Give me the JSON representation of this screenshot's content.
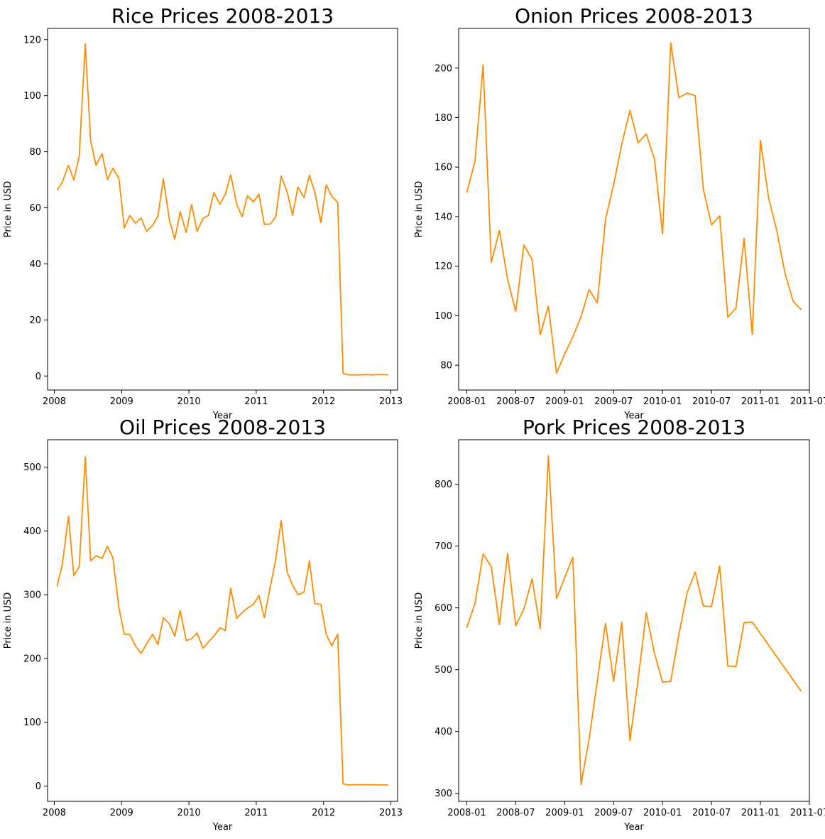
{
  "chart_data": [
    {
      "type": "line",
      "title": "Rice Prices 2008-2013",
      "xlabel": "Year",
      "ylabel": "Price in USD",
      "x_axis": "year",
      "xlim": [
        2007.9,
        2013.1
      ],
      "ylim": [
        -5,
        124
      ],
      "xticks": [
        "2008",
        "2009",
        "2010",
        "2011",
        "2012",
        "2013"
      ],
      "yticks": [
        0,
        20,
        40,
        60,
        80,
        100,
        120
      ],
      "color": "#ff8c00",
      "grid": false,
      "series": [
        {
          "x": [
            2008.04,
            2008.12,
            2008.21,
            2008.29,
            2008.37,
            2008.46,
            2008.54,
            2008.62,
            2008.71,
            2008.79,
            2008.87,
            2008.96,
            2009.04,
            2009.12,
            2009.21,
            2009.29,
            2009.37,
            2009.46,
            2009.54,
            2009.62,
            2009.71,
            2009.79,
            2009.87,
            2009.96,
            2010.04,
            2010.12,
            2010.21,
            2010.29,
            2010.37,
            2010.46,
            2010.54,
            2010.62,
            2010.71,
            2010.79,
            2010.87,
            2010.96,
            2011.04,
            2011.12,
            2011.21,
            2011.29,
            2011.37,
            2011.46,
            2011.54,
            2011.62,
            2011.71,
            2011.79,
            2011.87,
            2011.96,
            2012.04,
            2012.12,
            2012.21,
            2012.29,
            2012.37,
            2012.46,
            2012.54,
            2012.62,
            2012.71,
            2012.79,
            2012.87,
            2012.96
          ],
          "y": [
            66.2,
            69.2,
            75.2,
            69.9,
            78.4,
            118.5,
            83.8,
            75.2,
            79.3,
            70.1,
            74.1,
            70.5,
            52.8,
            57.3,
            54.5,
            56.4,
            51.6,
            53.7,
            57.1,
            70.4,
            55.6,
            48.8,
            58.6,
            51.2,
            61.2,
            51.6,
            56.2,
            57.3,
            65.4,
            61.3,
            64.8,
            71.8,
            61.3,
            56.8,
            64.3,
            62.1,
            64.9,
            54.1,
            54.2,
            56.8,
            71.3,
            65.6,
            57.4,
            67.4,
            63.7,
            71.6,
            65.6,
            54.7,
            68.2,
            64.2,
            61.9,
            1.0,
            0.4,
            0.4,
            0.4,
            0.5,
            0.4,
            0.5,
            0.5,
            0.4
          ]
        }
      ]
    },
    {
      "type": "line",
      "title": "Onion Prices 2008-2013",
      "xlabel": "Year",
      "ylabel": "Price in USD",
      "x_axis": "month",
      "xlim": [
        "2007-12",
        "2011-07"
      ],
      "ylim": [
        70,
        216
      ],
      "xticks": [
        "2008-01",
        "2008-07",
        "2009-01",
        "2009-07",
        "2010-01",
        "2010-07",
        "2011-01",
        "2011-07"
      ],
      "yticks": [
        80,
        100,
        120,
        140,
        160,
        180,
        200
      ],
      "color": "#ff8c00",
      "grid": false,
      "series": [
        {
          "x": [
            "2008-01",
            "2008-02",
            "2008-03",
            "2008-04",
            "2008-05",
            "2008-06",
            "2008-07",
            "2008-08",
            "2008-09",
            "2008-10",
            "2008-11",
            "2008-12",
            "2009-01",
            "2009-02",
            "2009-03",
            "2009-04",
            "2009-05",
            "2009-06",
            "2009-07",
            "2009-08",
            "2009-09",
            "2009-10",
            "2009-11",
            "2009-12",
            "2010-01",
            "2010-02",
            "2010-03",
            "2010-04",
            "2010-05",
            "2010-06",
            "2010-07",
            "2010-08",
            "2010-09",
            "2010-10",
            "2010-11",
            "2010-12",
            "2011-01",
            "2011-02",
            "2011-03",
            "2011-04",
            "2011-05",
            "2011-06"
          ],
          "y": [
            149.7,
            162.3,
            201.3,
            121.5,
            134.4,
            114.7,
            101.7,
            128.6,
            122.7,
            92.3,
            103.9,
            76.8,
            84.6,
            91.4,
            99.6,
            110.5,
            105.2,
            138.9,
            152.9,
            169.3,
            182.9,
            169.8,
            173.4,
            163.3,
            133.0,
            210.2,
            188.0,
            189.9,
            188.9,
            151.1,
            136.7,
            140.3,
            99.4,
            103.0,
            131.3,
            92.4,
            170.8,
            147.6,
            134.4,
            117.3,
            105.9,
            102.4
          ]
        }
      ]
    },
    {
      "type": "line",
      "title": "Oil Prices 2008-2013",
      "xlabel": "Year",
      "ylabel": "Price in USD",
      "x_axis": "year",
      "xlim": [
        2007.9,
        2013.1
      ],
      "ylim": [
        -24,
        543
      ],
      "xticks": [
        "2008",
        "2009",
        "2010",
        "2011",
        "2012",
        "2013"
      ],
      "yticks": [
        0,
        100,
        200,
        300,
        400,
        500
      ],
      "color": "#ff8c00",
      "grid": false,
      "series": [
        {
          "x": [
            2008.04,
            2008.12,
            2008.21,
            2008.29,
            2008.37,
            2008.46,
            2008.54,
            2008.62,
            2008.71,
            2008.79,
            2008.87,
            2008.96,
            2009.04,
            2009.12,
            2009.21,
            2009.29,
            2009.37,
            2009.46,
            2009.54,
            2009.62,
            2009.71,
            2009.79,
            2009.87,
            2009.96,
            2010.04,
            2010.12,
            2010.21,
            2010.29,
            2010.37,
            2010.46,
            2010.54,
            2010.62,
            2010.71,
            2010.79,
            2010.87,
            2010.96,
            2011.04,
            2011.12,
            2011.21,
            2011.29,
            2011.37,
            2011.46,
            2011.54,
            2011.62,
            2011.71,
            2011.79,
            2011.87,
            2011.96,
            2012.04,
            2012.12,
            2012.21,
            2012.29,
            2012.37,
            2012.46,
            2012.54,
            2012.62,
            2012.71,
            2012.79,
            2012.87,
            2012.96
          ],
          "y": [
            313,
            348,
            423,
            330,
            344,
            516,
            353,
            361,
            357,
            376,
            358,
            279,
            238,
            238,
            219,
            208,
            223,
            238,
            222,
            264,
            254,
            235,
            275,
            228,
            231,
            240,
            216,
            226,
            235,
            248,
            244,
            310,
            263,
            272,
            279,
            285,
            299,
            264,
            313,
            356,
            416,
            335,
            315,
            300,
            304,
            353,
            286,
            285,
            238,
            220,
            238,
            3.5,
            1.8,
            2.0,
            2.0,
            2.0,
            1.9,
            2.0,
            1.8,
            1.7
          ]
        }
      ]
    },
    {
      "type": "line",
      "title": "Pork Prices 2008-2013",
      "xlabel": "Year",
      "ylabel": "Price in USD",
      "x_axis": "month",
      "xlim": [
        "2007-12",
        "2011-07"
      ],
      "ylim": [
        287,
        872
      ],
      "xticks": [
        "2008-01",
        "2008-07",
        "2009-01",
        "2009-07",
        "2010-01",
        "2010-07",
        "2011-01",
        "2011-07"
      ],
      "yticks": [
        300,
        400,
        500,
        600,
        700,
        800
      ],
      "color": "#ff8c00",
      "grid": false,
      "series": [
        {
          "x": [
            "2008-01",
            "2008-02",
            "2008-03",
            "2008-04",
            "2008-05",
            "2008-06",
            "2008-07",
            "2008-08",
            "2008-09",
            "2008-10",
            "2008-11",
            "2008-12",
            "2009-01",
            "2009-02",
            "2009-03",
            "2009-04",
            "2009-05",
            "2009-06",
            "2009-07",
            "2009-08",
            "2009-09",
            "2009-10",
            "2009-11",
            "2009-12",
            "2010-01",
            "2010-02",
            "2010-03",
            "2010-04",
            "2010-05",
            "2010-06",
            "2010-07",
            "2010-08",
            "2010-09",
            "2010-10",
            "2010-11",
            "2010-12",
            "2011-06"
          ],
          "y": [
            568,
            607,
            687,
            667,
            573,
            688,
            571,
            598,
            647,
            566,
            846,
            615,
            649,
            682,
            314,
            388,
            482,
            575,
            481,
            577,
            385,
            484,
            592,
            527,
            480,
            481,
            557,
            624,
            658,
            603,
            602,
            668,
            506,
            505,
            576,
            577,
            465
          ]
        }
      ]
    }
  ]
}
